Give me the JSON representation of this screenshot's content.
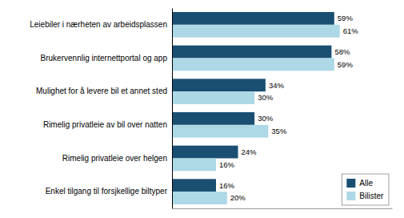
{
  "chart_data": {
    "type": "bar",
    "orientation": "horizontal",
    "categories": [
      "Enkel tilgang til forsjkellige biltyper",
      "Rimelig privatleie over helgen",
      "Rimelig privatleie av bil over natten",
      "Mulighet for å levere bil et annet sted",
      "Brukervennlig internettportal og app",
      "Leiebiler i nærheten av arbeidsplassen"
    ],
    "series": [
      {
        "name": "Alle",
        "color": "#1a4f72",
        "values": [
          16,
          24,
          30,
          34,
          58,
          59
        ],
        "value_labels": [
          "16%",
          "24%",
          "30%",
          "34%",
          "58%",
          "59%"
        ]
      },
      {
        "name": "Bilister",
        "color": "#add8e6",
        "values": [
          20,
          16,
          35,
          30,
          59,
          61
        ],
        "value_labels": [
          "20%",
          "16%",
          "35%",
          "30%",
          "59%",
          "61%"
        ]
      }
    ],
    "xlim": [
      0,
      80
    ],
    "data_labels": true,
    "tick_labels": "y",
    "legend": "lower right"
  }
}
